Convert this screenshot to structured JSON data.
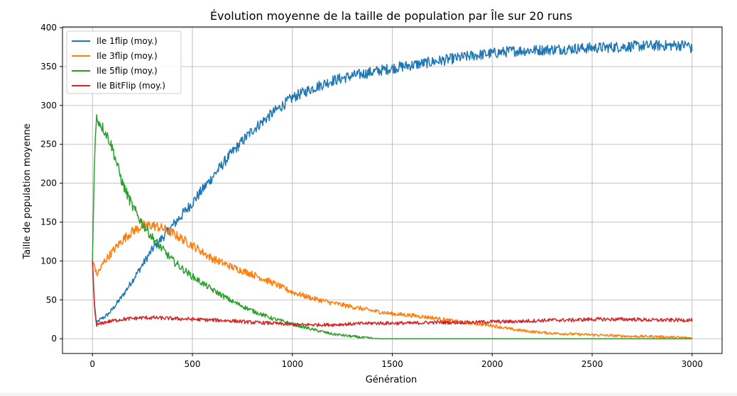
{
  "chart_data": {
    "type": "line",
    "title": "Évolution moyenne de la taille de population par Île sur 20 runs",
    "xlabel": "Génération",
    "ylabel": "Taille de population moyenne",
    "xlim": [
      -150,
      3150
    ],
    "ylim": [
      -19,
      401
    ],
    "xticks": [
      0,
      500,
      1000,
      1500,
      2000,
      2500,
      3000
    ],
    "yticks": [
      0,
      50,
      100,
      150,
      200,
      250,
      300,
      350,
      400
    ],
    "grid": true,
    "legend_position": "upper left",
    "series": [
      {
        "name": "Ile 1flip (moy.)",
        "color": "#1f77b4",
        "x": [
          0,
          10,
          20,
          40,
          60,
          80,
          100,
          150,
          200,
          250,
          300,
          350,
          400,
          450,
          500,
          600,
          700,
          800,
          900,
          1000,
          1100,
          1200,
          1300,
          1400,
          1500,
          1600,
          1700,
          1800,
          1900,
          2000,
          2100,
          2200,
          2300,
          2400,
          2500,
          2600,
          2700,
          2800,
          2900,
          2980,
          3000
        ],
        "y": [
          100,
          45,
          20,
          25,
          28,
          32,
          38,
          55,
          75,
          95,
          115,
          130,
          145,
          160,
          175,
          208,
          240,
          268,
          290,
          310,
          322,
          332,
          338,
          343,
          348,
          352,
          356,
          360,
          364,
          367,
          370,
          371,
          372,
          373,
          374,
          375,
          376,
          377,
          377,
          378,
          372
        ]
      },
      {
        "name": "Ile 3flip (moy.)",
        "color": "#ff7f0e",
        "x": [
          0,
          10,
          20,
          40,
          60,
          100,
          150,
          200,
          250,
          300,
          350,
          400,
          450,
          500,
          600,
          700,
          800,
          900,
          1000,
          1100,
          1200,
          1300,
          1400,
          1500,
          1600,
          1700,
          1800,
          1900,
          2000,
          2100,
          2200,
          2300,
          2400,
          2500,
          2600,
          2700,
          2800,
          2900,
          3000
        ],
        "y": [
          100,
          95,
          82,
          90,
          100,
          112,
          127,
          138,
          145,
          146,
          142,
          136,
          128,
          120,
          103,
          92,
          83,
          72,
          60,
          52,
          46,
          41,
          36,
          32,
          30,
          27,
          23,
          20,
          17,
          12,
          9,
          7,
          6,
          5,
          4,
          3,
          3,
          2,
          1
        ]
      },
      {
        "name": "Ile 5flip (moy.)",
        "color": "#2ca02c",
        "x": [
          0,
          10,
          20,
          30,
          50,
          80,
          100,
          150,
          200,
          250,
          300,
          350,
          400,
          450,
          500,
          600,
          700,
          800,
          900,
          1000,
          1100,
          1200,
          1300,
          1350,
          1400,
          1450,
          1500,
          1600,
          1800,
          2000,
          2200,
          2400,
          2600,
          2800,
          3000
        ],
        "y": [
          100,
          230,
          285,
          280,
          272,
          258,
          245,
          200,
          170,
          148,
          130,
          115,
          101,
          90,
          80,
          63,
          48,
          36,
          26,
          19,
          12,
          6,
          3,
          1.5,
          0.5,
          0,
          0,
          0,
          0,
          0,
          0,
          0,
          0,
          0,
          0
        ]
      },
      {
        "name": "Ile BitFlip (moy.)",
        "color": "#d62728",
        "x": [
          0,
          10,
          20,
          40,
          60,
          100,
          150,
          200,
          250,
          300,
          400,
          500,
          600,
          700,
          800,
          900,
          1000,
          1100,
          1200,
          1300,
          1400,
          1500,
          1600,
          1700,
          1800,
          1900,
          2000,
          2100,
          2200,
          2300,
          2400,
          2500,
          2600,
          2700,
          2800,
          2900,
          3000
        ],
        "y": [
          100,
          40,
          18,
          19,
          21,
          23,
          25,
          26,
          27,
          27,
          26,
          25,
          24,
          23,
          21,
          20,
          18,
          18,
          18,
          19,
          20,
          20,
          20,
          21,
          21,
          21,
          22,
          22,
          23,
          24,
          24,
          25,
          25,
          25,
          24,
          24,
          24
        ]
      }
    ]
  }
}
